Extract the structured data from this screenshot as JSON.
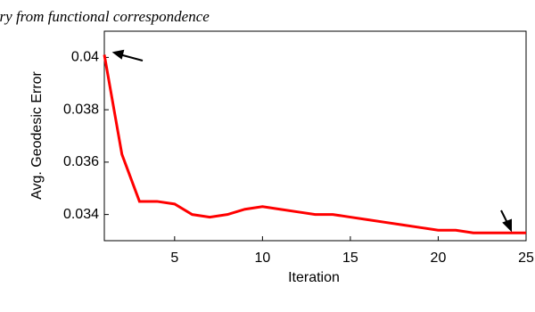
{
  "header": {
    "text": "ery from functional correspondence"
  },
  "chart_data": {
    "type": "line",
    "xlabel": "Iteration",
    "ylabel": "Avg. Geodesic Error",
    "x": [
      1,
      2,
      3,
      4,
      5,
      6,
      7,
      8,
      9,
      10,
      11,
      12,
      13,
      14,
      15,
      16,
      17,
      18,
      19,
      20,
      21,
      22,
      23,
      24,
      25
    ],
    "series": [
      {
        "color": "#ff0000",
        "values": [
          0.0401,
          0.0363,
          0.0345,
          0.0345,
          0.0344,
          0.034,
          0.0339,
          0.034,
          0.0342,
          0.0343,
          0.0342,
          0.0341,
          0.034,
          0.034,
          0.0339,
          0.0338,
          0.0337,
          0.0336,
          0.0335,
          0.0334,
          0.0334,
          0.0333,
          0.0333,
          0.0333,
          0.0333
        ]
      }
    ],
    "xlim": [
      1,
      25
    ],
    "ylim": [
      0.033,
      0.041
    ],
    "xticks": [
      5,
      10,
      15,
      20,
      25
    ],
    "yticks": [
      0.034,
      0.036,
      0.038,
      0.04
    ]
  }
}
